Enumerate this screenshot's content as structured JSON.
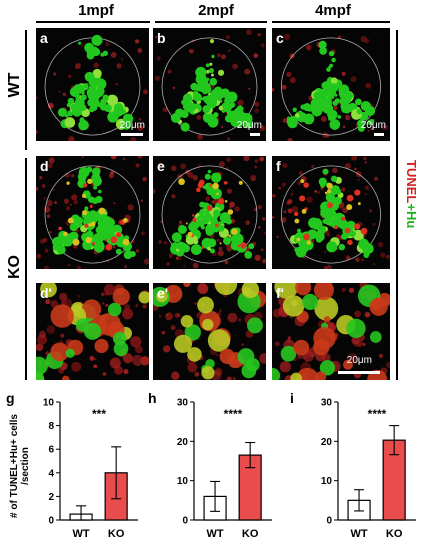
{
  "columns": [
    "1mpf",
    "2mpf",
    "4mpf"
  ],
  "rows": [
    "WT",
    "KO"
  ],
  "stain_label": {
    "red": "TUNEL",
    "plus": "+",
    "green": "Hu"
  },
  "panels": [
    {
      "label": "a",
      "scale": "20μm"
    },
    {
      "label": "b",
      "scale": "20μm"
    },
    {
      "label": "c",
      "scale": "20μm"
    },
    {
      "label": "d",
      "scale": ""
    },
    {
      "label": "e",
      "scale": ""
    },
    {
      "label": "f",
      "scale": ""
    },
    {
      "label": "d'",
      "scale": ""
    },
    {
      "label": "e'",
      "scale": ""
    },
    {
      "label": "f'",
      "scale": "20μm"
    }
  ],
  "colors": {
    "tunel": "#d42020",
    "hu": "#1fb01f",
    "ko_bar": "#e84c4c"
  },
  "chart_data": [
    {
      "type": "bar",
      "letter": "g",
      "categories": [
        "WT",
        "KO"
      ],
      "values": [
        0.5,
        4.0
      ],
      "errors": [
        0.7,
        2.2
      ],
      "ylim": [
        0,
        10
      ],
      "yticks": [
        0,
        2,
        4,
        6,
        8,
        10
      ],
      "significance": "***",
      "ylabel_line1": "# of TUNEL+Hu+ cells",
      "ylabel_line2": "/section"
    },
    {
      "type": "bar",
      "letter": "h",
      "categories": [
        "WT",
        "KO"
      ],
      "values": [
        6.0,
        16.5
      ],
      "errors": [
        3.8,
        3.2
      ],
      "ylim": [
        0,
        30
      ],
      "yticks": [
        0,
        10,
        20,
        30
      ],
      "significance": "****"
    },
    {
      "type": "bar",
      "letter": "i",
      "categories": [
        "WT",
        "KO"
      ],
      "values": [
        5.0,
        20.3
      ],
      "errors": [
        2.7,
        3.7
      ],
      "ylim": [
        0,
        30
      ],
      "yticks": [
        0,
        10,
        20,
        30
      ],
      "significance": "****"
    }
  ]
}
